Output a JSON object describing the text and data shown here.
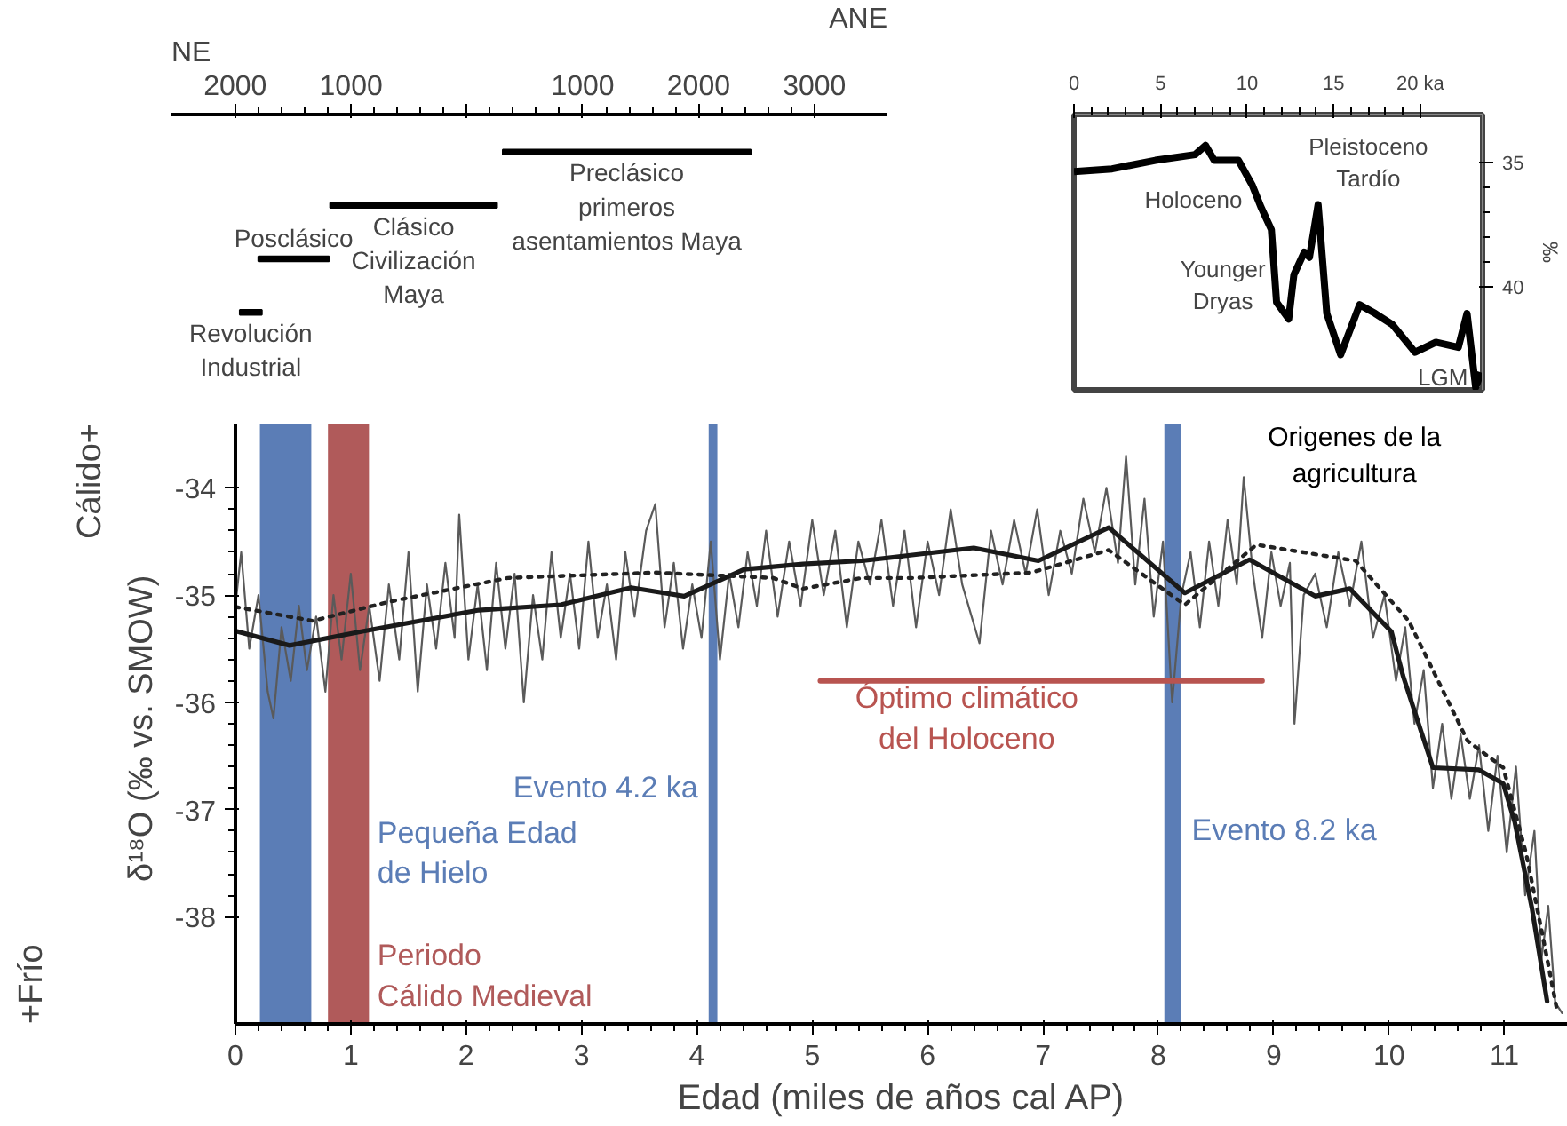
{
  "chart_data": [
    {
      "type": "bar",
      "orientation": "horizontal",
      "categories": [
        null,
        null,
        null,
        null
      ],
      "base": [
        -310,
        1180,
        1800,
        1960
      ],
      "values": [
        -2140,
        -1440,
        -610,
        -190
      ],
      "color": "#000000",
      "xlim": [
        2550,
        -3630
      ],
      "xticks": [
        2000,
        1000,
        {
          "value": 0,
          "label": null
        },
        {
          "value": -1000,
          "label": "1000"
        },
        {
          "value": -2000,
          "label": "2000"
        },
        {
          "value": -3000,
          "label": "3000"
        }
      ],
      "annotations": [
        "NE",
        "ANE",
        "Preclásico\nprimeros\nasentamientos Maya",
        "Clásico\nCivilización\nMaya",
        "Posclásico",
        "Revolución\nIndustrial"
      ],
      "tick_labels": "x",
      "grid": false
    },
    {
      "type": "line",
      "x": [
        0,
        2.2,
        4.7,
        7.0,
        7.6,
        8.1,
        9.5,
        10.3,
        10.8,
        11.4,
        11.7,
        12.4,
        12.7,
        13.3,
        13.6,
        14.1,
        14.6,
        15.4,
        16.5,
        17.4,
        18.4,
        19.7,
        20.9,
        22.2,
        22.7,
        23.2,
        23.5
      ],
      "values": [
        35.38,
        35.27,
        34.93,
        34.7,
        34.33,
        34.93,
        34.93,
        35.93,
        36.8,
        37.7,
        40.6,
        41.27,
        39.5,
        38.6,
        38.8,
        36.7,
        41.05,
        42.7,
        40.7,
        41.05,
        41.5,
        42.6,
        42.2,
        42.4,
        41.05,
        44.0,
        43.4
      ],
      "color": "#000000",
      "ylabel": "‰",
      "xlim": [
        0,
        23.6
      ],
      "ylim": [
        44.1,
        33.1
      ],
      "xticks": [
        0,
        5,
        10,
        15,
        {
          "value": 20,
          "label": "20 ka"
        }
      ],
      "yticks": [
        35,
        40
      ],
      "grid": false,
      "annotations": [
        "Holoceno",
        "Pleistoceno\nTardío",
        "Younger\nDryas",
        "LGM"
      ]
    },
    {
      "type": "line",
      "xlabel": "Edad (miles de años cal AP)",
      "ylabel": "δ¹⁸O  (‰ vs. SMOW)",
      "xlim": [
        0,
        11.55
      ],
      "ylim": [
        -39.0,
        -33.4
      ],
      "xticks": [
        0,
        1,
        2,
        3,
        4,
        5,
        6,
        7,
        8,
        9,
        10,
        11
      ],
      "yticks": [
        -34,
        -35,
        -36,
        -37,
        -38
      ],
      "grid": false,
      "series": [
        {
          "color": "#5a5a5a",
          "line_style": "solid",
          "x": [
            0.0,
            0.05,
            0.12,
            0.2,
            0.28,
            0.33,
            0.4,
            0.48,
            0.55,
            0.62,
            0.7,
            0.78,
            0.85,
            0.92,
            1.0,
            1.08,
            1.16,
            1.25,
            1.33,
            1.42,
            1.5,
            1.58,
            1.66,
            1.74,
            1.82,
            1.9,
            1.94,
            2.02,
            2.1,
            2.18,
            2.26,
            2.34,
            2.42,
            2.5,
            2.58,
            2.66,
            2.74,
            2.82,
            2.9,
            2.98,
            3.06,
            3.14,
            3.22,
            3.3,
            3.38,
            3.46,
            3.56,
            3.64,
            3.72,
            3.8,
            3.88,
            3.96,
            4.04,
            4.12,
            4.2,
            4.28,
            4.36,
            4.44,
            4.52,
            4.6,
            4.7,
            4.8,
            4.9,
            5.0,
            5.1,
            5.2,
            5.3,
            5.4,
            5.5,
            5.6,
            5.7,
            5.8,
            5.9,
            6.0,
            6.1,
            6.2,
            6.3,
            6.45,
            6.55,
            6.65,
            6.75,
            6.85,
            6.95,
            7.05,
            7.15,
            7.25,
            7.35,
            7.45,
            7.55,
            7.65,
            7.72,
            7.8,
            7.88,
            7.96,
            8.04,
            8.12,
            8.2,
            8.28,
            8.36,
            8.44,
            8.52,
            8.6,
            8.68,
            8.74,
            8.82,
            8.9,
            8.98,
            9.06,
            9.14,
            9.18,
            9.26,
            9.36,
            9.46,
            9.56,
            9.66,
            9.76,
            9.86,
            9.96,
            10.06,
            10.14,
            10.22,
            10.3,
            10.38,
            10.46,
            10.54,
            10.62,
            10.7,
            10.78,
            10.86,
            10.94,
            11.02,
            11.1,
            11.18,
            11.26,
            11.32,
            11.38,
            11.44,
            11.5
          ],
          "values": [
            -35.1,
            -34.6,
            -35.5,
            -35.0,
            -35.9,
            -36.15,
            -35.3,
            -35.8,
            -35.1,
            -35.7,
            -35.2,
            -35.9,
            -35.0,
            -35.6,
            -34.8,
            -35.7,
            -35.1,
            -35.8,
            -34.9,
            -35.6,
            -34.6,
            -35.9,
            -34.9,
            -35.5,
            -34.7,
            -35.4,
            -34.25,
            -35.6,
            -34.9,
            -35.7,
            -34.7,
            -35.5,
            -34.8,
            -36.0,
            -35.0,
            -35.6,
            -34.6,
            -35.4,
            -34.8,
            -35.5,
            -34.5,
            -35.4,
            -34.9,
            -35.6,
            -34.6,
            -35.2,
            -34.4,
            -34.15,
            -35.3,
            -34.7,
            -35.5,
            -34.9,
            -35.4,
            -34.5,
            -35.6,
            -34.8,
            -35.3,
            -34.6,
            -35.1,
            -34.4,
            -35.2,
            -34.5,
            -35.1,
            -34.3,
            -35.0,
            -34.4,
            -35.3,
            -34.5,
            -34.9,
            -34.3,
            -35.1,
            -34.4,
            -35.3,
            -34.5,
            -35.0,
            -34.2,
            -34.9,
            -35.45,
            -34.4,
            -34.9,
            -34.3,
            -34.8,
            -34.2,
            -35.0,
            -34.4,
            -34.8,
            -34.1,
            -34.6,
            -34.0,
            -34.7,
            -33.7,
            -34.9,
            -34.1,
            -35.2,
            -34.5,
            -36.0,
            -35.0,
            -34.6,
            -35.3,
            -34.5,
            -35.1,
            -34.3,
            -34.9,
            -33.9,
            -34.8,
            -35.4,
            -34.6,
            -35.1,
            -34.7,
            -36.2,
            -35.0,
            -34.8,
            -35.3,
            -34.6,
            -35.1,
            -34.5,
            -35.4,
            -35.0,
            -35.8,
            -35.3,
            -36.2,
            -35.7,
            -36.8,
            -36.2,
            -36.9,
            -36.3,
            -36.9,
            -36.4,
            -37.2,
            -36.5,
            -37.4,
            -36.6,
            -37.8,
            -37.2,
            -38.4,
            -37.9,
            -38.8,
            -38.9
          ]
        },
        {
          "color": "#1a1a1a",
          "line_style": "solid",
          "x": [
            0.02,
            0.47,
            1.09,
            2.11,
            2.82,
            3.43,
            3.89,
            4.41,
            4.92,
            5.43,
            6.4,
            6.96,
            7.57,
            8.23,
            8.79,
            9.36,
            9.66,
            10.02,
            10.12,
            10.38,
            10.78,
            10.99,
            11.09,
            11.24,
            11.37
          ],
          "values": [
            -35.34,
            -35.47,
            -35.34,
            -35.14,
            -35.09,
            -34.93,
            -35.01,
            -34.76,
            -34.71,
            -34.68,
            -34.56,
            -34.68,
            -34.37,
            -34.98,
            -34.67,
            -35.01,
            -34.94,
            -35.34,
            -35.75,
            -36.61,
            -36.63,
            -36.76,
            -37.12,
            -37.93,
            -38.79
          ]
        },
        {
          "color": "#222222",
          "line_style": "dotted",
          "x": [
            0.0,
            0.67,
            1.34,
            2.36,
            3.64,
            4.66,
            4.92,
            5.43,
            5.88,
            6.9,
            7.57,
            8.23,
            8.85,
            9.71,
            10.17,
            10.68,
            10.99,
            11.19,
            11.35,
            11.45
          ],
          "values": [
            -35.11,
            -35.24,
            -35.06,
            -34.84,
            -34.79,
            -34.84,
            -34.94,
            -34.84,
            -34.84,
            -34.79,
            -34.58,
            -35.09,
            -34.53,
            -34.68,
            -35.24,
            -36.36,
            -36.61,
            -37.42,
            -38.28,
            -38.84
          ]
        },
        {
          "color": "#b85450",
          "line_style": "solid",
          "x": [
            5.07,
            8.9
          ],
          "values": [
            -35.8,
            -35.8
          ]
        }
      ],
      "bands": [
        {
          "axis": "x",
          "from": 0.22,
          "to": 0.65,
          "label": "Pequeña Edad\nde Hielo",
          "color": "#5b7db6"
        },
        {
          "axis": "x",
          "from": 0.81,
          "to": 1.15,
          "label": "Periodo\nCálido Medieval",
          "color": "#b05a5a"
        },
        {
          "axis": "x",
          "from": 4.11,
          "to": 4.17,
          "label": "Evento 4.2 ka",
          "color": "#5b7db6"
        },
        {
          "axis": "x",
          "from": 8.06,
          "to": 8.19,
          "label": "Evento 8.2 ka",
          "color": "#5b7db6"
        }
      ],
      "annotations": [
        "Cálido+",
        "+Frío",
        "Origenes de la\nagricultura",
        "Óptimo climático\ndel Holoceno"
      ]
    }
  ]
}
